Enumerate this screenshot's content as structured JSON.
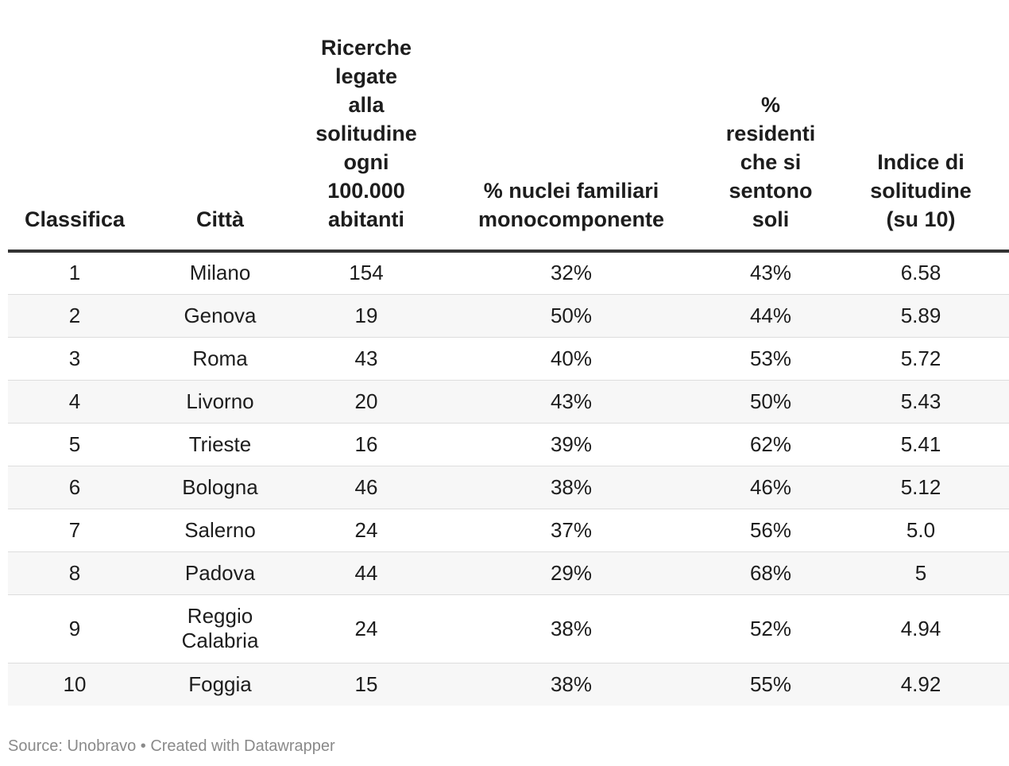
{
  "chart_data": {
    "type": "table",
    "columns": [
      "Classifica",
      "Città",
      "Ricerche\nlegate\nalla\nsolitudine\nogni\n100.000\nabitanti",
      "% nuclei familiari\nmonocomponente",
      "%\nresidenti\nche si\nsentono\nsoli",
      "Indice di\nsolitudine\n(su 10)"
    ],
    "rows": [
      [
        "1",
        "Milano",
        "154",
        "32%",
        "43%",
        "6.58"
      ],
      [
        "2",
        "Genova",
        "19",
        "50%",
        "44%",
        "5.89"
      ],
      [
        "3",
        "Roma",
        "43",
        "40%",
        "53%",
        "5.72"
      ],
      [
        "4",
        "Livorno",
        "20",
        "43%",
        "50%",
        "5.43"
      ],
      [
        "5",
        "Trieste",
        "16",
        "39%",
        "62%",
        "5.41"
      ],
      [
        "6",
        "Bologna",
        "46",
        "38%",
        "46%",
        "5.12"
      ],
      [
        "7",
        "Salerno",
        "24",
        "37%",
        "56%",
        "5.0"
      ],
      [
        "8",
        "Padova",
        "44",
        "29%",
        "68%",
        "5"
      ],
      [
        "9",
        "Reggio\nCalabria",
        "24",
        "38%",
        "52%",
        "4.94"
      ],
      [
        "10",
        "Foggia",
        "15",
        "38%",
        "55%",
        "4.92"
      ]
    ]
  },
  "footer": {
    "text": "Source: Unobravo • Created with Datawrapper"
  }
}
